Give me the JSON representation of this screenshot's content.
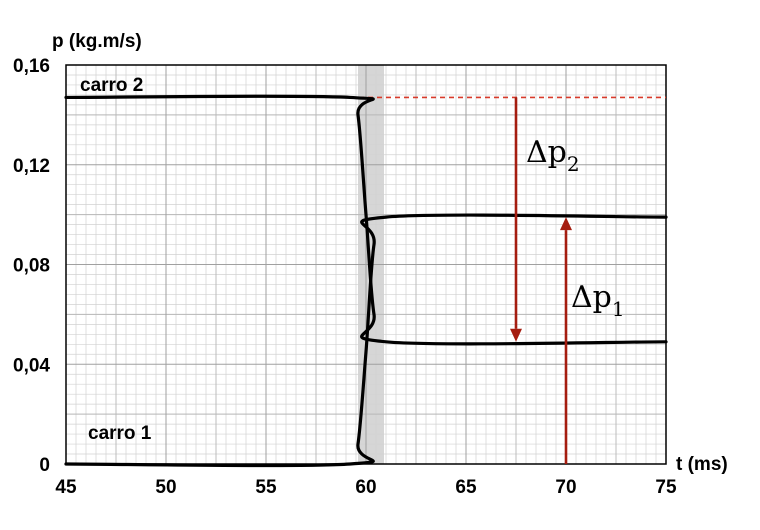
{
  "chart_data": {
    "type": "line",
    "ylabel": "p (kg.m/s)",
    "xlabel": "t (ms)",
    "xlim": [
      45,
      75
    ],
    "ylim": [
      0,
      0.16
    ],
    "x_ticks": [
      "45",
      "50",
      "55",
      "60",
      "65",
      "70",
      "75"
    ],
    "y_ticks": [
      "0",
      "0,04",
      "0,08",
      "0,12",
      "0,16"
    ],
    "grid": true,
    "collision_band": [
      59.6,
      60.9
    ],
    "series": [
      {
        "name": "carro 2",
        "points": [
          [
            45,
            0.147
          ],
          [
            59.2,
            0.147
          ],
          [
            59.6,
            0.14
          ],
          [
            60.0,
            0.1
          ],
          [
            60.4,
            0.06
          ],
          [
            61.0,
            0.049
          ],
          [
            75,
            0.049
          ]
        ]
      },
      {
        "name": "carro 1",
        "points": [
          [
            45,
            0.0
          ],
          [
            59.2,
            0.0
          ],
          [
            59.6,
            0.008
          ],
          [
            60.0,
            0.045
          ],
          [
            60.4,
            0.088
          ],
          [
            61.0,
            0.099
          ],
          [
            75,
            0.099
          ]
        ]
      }
    ],
    "reference_line": {
      "y": 0.147,
      "x_from": 59.2,
      "x_to": 75,
      "color": "#d83a2a"
    },
    "annotations": [
      {
        "label": "Δp",
        "subscript": "2",
        "x": 67.5,
        "from_y": 0.147,
        "to_y": 0.049,
        "color": "#a51d10"
      },
      {
        "label": "Δp",
        "subscript": "1",
        "x": 70,
        "from_y": 0.0,
        "to_y": 0.099,
        "color": "#a51d10"
      }
    ],
    "colors": {
      "line": "#000000",
      "arrow": "#a51d10",
      "minor_grid": "#d2d2d2",
      "major_grid": "#a0a0a0",
      "band": "#c8c8c8"
    }
  }
}
